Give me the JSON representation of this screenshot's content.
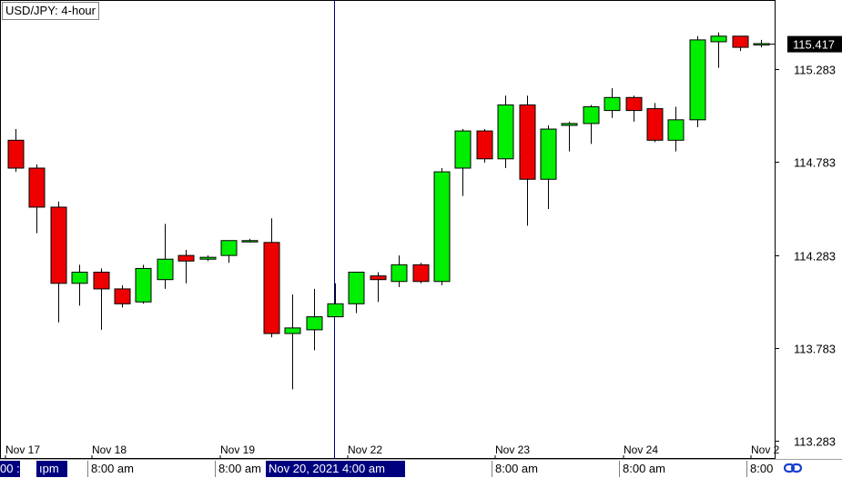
{
  "header": {
    "symbol_label": "USD/JPY: 4-hour"
  },
  "chart_data": {
    "type": "candlestick",
    "title": "USD/JPY: 4-hour",
    "y_axis": {
      "ticks": [
        "115.283",
        "114.783",
        "114.283",
        "113.783",
        "113.283"
      ],
      "range": [
        113.25,
        115.55
      ],
      "side": "right"
    },
    "x_axis": {
      "ticks": [
        "Nov 17",
        "Nov 18",
        "Nov 19",
        "Nov 22",
        "Nov 23",
        "Nov 24",
        "Nov 2"
      ]
    },
    "current_price": "115.417",
    "colors": {
      "up": "#00ee00",
      "down": "#ee0000",
      "crosshair": "#00007f",
      "outline": "#000000"
    },
    "candles": [
      {
        "o": 114.9,
        "h": 114.96,
        "l": 114.73,
        "c": 114.75
      },
      {
        "o": 114.75,
        "h": 114.77,
        "l": 114.4,
        "c": 114.54
      },
      {
        "o": 114.54,
        "h": 114.57,
        "l": 113.92,
        "c": 114.13
      },
      {
        "o": 114.13,
        "h": 114.23,
        "l": 114.01,
        "c": 114.19
      },
      {
        "o": 114.19,
        "h": 114.21,
        "l": 113.88,
        "c": 114.1
      },
      {
        "o": 114.1,
        "h": 114.12,
        "l": 114.0,
        "c": 114.02
      },
      {
        "o": 114.03,
        "h": 114.23,
        "l": 114.02,
        "c": 114.21
      },
      {
        "o": 114.15,
        "h": 114.45,
        "l": 114.1,
        "c": 114.26
      },
      {
        "o": 114.28,
        "h": 114.31,
        "l": 114.13,
        "c": 114.25
      },
      {
        "o": 114.26,
        "h": 114.28,
        "l": 114.25,
        "c": 114.27
      },
      {
        "o": 114.28,
        "h": 114.36,
        "l": 114.24,
        "c": 114.36
      },
      {
        "o": 114.36,
        "h": 114.37,
        "l": 114.35,
        "c": 114.36
      },
      {
        "o": 114.35,
        "h": 114.48,
        "l": 113.84,
        "c": 113.86
      },
      {
        "o": 113.86,
        "h": 114.07,
        "l": 113.56,
        "c": 113.89
      },
      {
        "o": 113.88,
        "h": 114.1,
        "l": 113.77,
        "c": 113.95
      },
      {
        "o": 113.95,
        "h": 114.13,
        "l": 113.95,
        "c": 114.02
      },
      {
        "o": 114.02,
        "h": 114.19,
        "l": 113.97,
        "c": 114.19
      },
      {
        "o": 114.17,
        "h": 114.19,
        "l": 114.03,
        "c": 114.15
      },
      {
        "o": 114.14,
        "h": 114.28,
        "l": 114.11,
        "c": 114.23
      },
      {
        "o": 114.23,
        "h": 114.24,
        "l": 114.13,
        "c": 114.14
      },
      {
        "o": 114.14,
        "h": 114.75,
        "l": 114.12,
        "c": 114.73
      },
      {
        "o": 114.75,
        "h": 114.96,
        "l": 114.6,
        "c": 114.95
      },
      {
        "o": 114.95,
        "h": 114.96,
        "l": 114.78,
        "c": 114.8
      },
      {
        "o": 114.8,
        "h": 115.14,
        "l": 114.75,
        "c": 115.09
      },
      {
        "o": 115.09,
        "h": 115.14,
        "l": 114.44,
        "c": 114.69
      },
      {
        "o": 114.69,
        "h": 114.98,
        "l": 114.53,
        "c": 114.96
      },
      {
        "o": 114.98,
        "h": 115.0,
        "l": 114.84,
        "c": 114.99
      },
      {
        "o": 114.99,
        "h": 115.09,
        "l": 114.88,
        "c": 115.08
      },
      {
        "o": 115.06,
        "h": 115.18,
        "l": 115.02,
        "c": 115.13
      },
      {
        "o": 115.13,
        "h": 115.14,
        "l": 115.0,
        "c": 115.06
      },
      {
        "o": 115.07,
        "h": 115.1,
        "l": 114.89,
        "c": 114.9
      },
      {
        "o": 114.9,
        "h": 115.08,
        "l": 114.84,
        "c": 115.01
      },
      {
        "o": 115.01,
        "h": 115.46,
        "l": 114.97,
        "c": 115.44
      },
      {
        "o": 115.43,
        "h": 115.48,
        "l": 115.29,
        "c": 115.46
      },
      {
        "o": 115.46,
        "h": 115.46,
        "l": 115.38,
        "c": 115.4
      },
      {
        "o": 115.42,
        "h": 115.44,
        "l": 115.4,
        "c": 115.42
      }
    ]
  },
  "bottom_bar": {
    "cells": [
      "00 :",
      "ıpm",
      "8:00 am",
      "8:00 am",
      "Nov 20, 2021 4:00 am",
      "8:00 am",
      "8:00 am",
      "8:00"
    ]
  }
}
